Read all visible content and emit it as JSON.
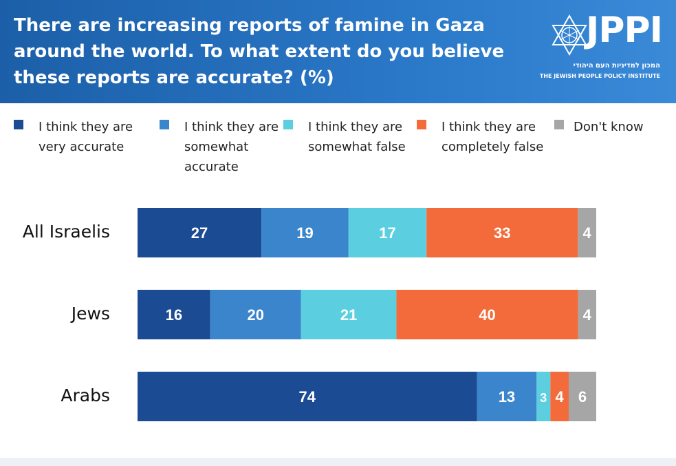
{
  "header": {
    "title": "There are increasing reports of famine in Gaza around the world. To what extent do you believe these reports are accurate?  (%)",
    "logo_text": "JPPI",
    "logo_hebrew": "המכון למדיניות העם היהודי",
    "logo_english": "THE JEWISH PEOPLE POLICY INSTITUTE",
    "logo_icon": "star-of-david-icon"
  },
  "chart_data": {
    "type": "bar",
    "orientation": "horizontal",
    "stacked": true,
    "title": "There are increasing reports of famine in Gaza around the world. To what extent do you believe these reports are accurate?  (%)",
    "categories": [
      "All Israelis",
      "Jews",
      "Arabs"
    ],
    "series": [
      {
        "name": "I think they are very accurate",
        "color": "#1b4b93",
        "values": [
          27,
          16,
          74
        ]
      },
      {
        "name": "I think they are somewhat accurate",
        "color": "#3a85cc",
        "values": [
          19,
          20,
          13
        ]
      },
      {
        "name": "I think they are somewhat false",
        "color": "#5bcfe0",
        "values": [
          17,
          21,
          3
        ]
      },
      {
        "name": "I think they are completely false",
        "color": "#f36b3a",
        "values": [
          33,
          40,
          4
        ]
      },
      {
        "name": "Don't know",
        "color": "#a6a6a6",
        "values": [
          4,
          4,
          6
        ]
      }
    ],
    "xlim": [
      0,
      100
    ],
    "xlabel": "",
    "ylabel": "",
    "grid": false,
    "legend": "top"
  }
}
